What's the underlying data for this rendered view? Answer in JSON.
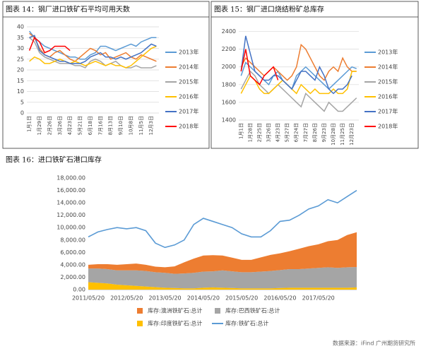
{
  "chart_data": [
    {
      "type": "line",
      "title": "图表 14：钢厂进口铁矿石平均可用天数",
      "categories": [
        "1月1日",
        null,
        "1月29日",
        null,
        "2月26日",
        null,
        "3月26日",
        null,
        "4月23日",
        null,
        "5月21日",
        null,
        "6月18日",
        null,
        "7月16日",
        null,
        "8月13日",
        null,
        "9月10日",
        null,
        "10月8日",
        null,
        "11月5日",
        null,
        "12月3日",
        null
      ],
      "ylim": [
        0,
        40
      ],
      "yticks": [
        0,
        5,
        10,
        15,
        20,
        25,
        30,
        35,
        40
      ],
      "grid": true,
      "legend": "right",
      "series": [
        {
          "name": "2013年",
          "color": "#5b9bd5",
          "values": [
            38,
            35,
            33,
            31,
            30,
            29,
            28,
            27,
            26,
            26,
            25,
            25,
            27,
            28,
            31,
            31,
            30,
            29,
            30,
            31,
            32,
            31,
            33,
            34,
            35,
            35
          ]
        },
        {
          "name": "2014年",
          "color": "#ed7d31",
          "values": [
            37,
            35,
            30,
            27,
            26,
            28,
            29,
            27,
            25,
            24,
            26,
            28,
            30,
            29,
            27,
            28,
            25,
            26,
            27,
            28,
            26,
            25,
            27,
            26,
            25,
            24
          ]
        },
        {
          "name": "2015年",
          "color": "#a5a5a5",
          "values": [
            35,
            33,
            28,
            26,
            25,
            24,
            23,
            23,
            23,
            22,
            22,
            21,
            24,
            25,
            24,
            22,
            23,
            24,
            22,
            21,
            21,
            22,
            21,
            21,
            21,
            22
          ]
        },
        {
          "name": "2016年",
          "color": "#ffc000",
          "values": [
            24,
            26,
            25,
            23,
            23,
            24,
            25,
            24,
            23,
            24,
            23,
            22,
            23,
            24,
            23,
            22,
            23,
            22,
            22,
            21,
            22,
            24,
            26,
            28,
            30,
            31
          ]
        },
        {
          "name": "2017年",
          "color": "#4472c4",
          "values": [
            35,
            36,
            29,
            27,
            26,
            25,
            24,
            24,
            23,
            23,
            23,
            24,
            26,
            27,
            28,
            26,
            26,
            25,
            26,
            25,
            26,
            27,
            28,
            30,
            32,
            31
          ]
        },
        {
          "name": "2018年",
          "color": "#ff0000",
          "values": [
            29,
            35,
            33,
            28,
            29,
            31,
            31,
            31,
            29,
            null,
            null,
            null,
            null,
            null,
            null,
            null,
            null,
            null,
            null,
            null,
            null,
            null,
            null,
            null,
            null,
            null
          ]
        }
      ]
    },
    {
      "type": "line",
      "title": "图表 15：钢厂进口烧结粉矿总库存",
      "categories": [
        "1月1日",
        null,
        "1月28日",
        null,
        "2月25日",
        null,
        "3月26日",
        null,
        "4月23日",
        null,
        "5月27日",
        null,
        "6月24日",
        null,
        "7月27日",
        null,
        "8月26日",
        null,
        "9月23日",
        null,
        "10月28日",
        null,
        "11月25日",
        null,
        "12月23日",
        null
      ],
      "ylim": [
        1400,
        2500
      ],
      "yticks": [
        1400,
        1600,
        1800,
        2000,
        2200,
        2400
      ],
      "grid": true,
      "legend": "right",
      "series": [
        {
          "name": "2013年",
          "color": "#5b9bd5",
          "values": [
            1900,
            2050,
            2000,
            1950,
            1900,
            1850,
            1800,
            1900,
            1950,
            1850,
            1800,
            1750,
            1900,
            1950,
            2000,
            1950,
            1900,
            1850,
            1800,
            1750,
            1800,
            1850,
            1900,
            1950,
            2000,
            1980
          ]
        },
        {
          "name": "2014年",
          "color": "#ed7d31",
          "values": [
            2000,
            2100,
            2050,
            2000,
            1950,
            1900,
            1950,
            2000,
            1950,
            1900,
            1850,
            1900,
            2000,
            2250,
            2200,
            2100,
            2000,
            1900,
            1850,
            1950,
            2000,
            1950,
            2100,
            2000,
            1950,
            1950
          ]
        },
        {
          "name": "2015年",
          "color": "#a5a5a5",
          "values": [
            1750,
            1850,
            1950,
            1900,
            1800,
            1750,
            1700,
            1750,
            1800,
            1750,
            1700,
            1650,
            1600,
            1550,
            1700,
            1650,
            1600,
            1550,
            1500,
            1600,
            1550,
            1500,
            1500,
            1550,
            1600,
            1650
          ]
        },
        {
          "name": "2016年",
          "color": "#ffc000",
          "values": [
            1700,
            1800,
            1900,
            1850,
            1750,
            1700,
            1700,
            1750,
            1800,
            1850,
            1800,
            1750,
            1700,
            1800,
            1750,
            1700,
            1750,
            1700,
            1700,
            1700,
            1750,
            1700,
            1700,
            1750,
            1950,
            1950
          ]
        },
        {
          "name": "2017年",
          "color": "#4472c4",
          "values": [
            1950,
            2350,
            2150,
            1950,
            1900,
            1850,
            1850,
            1900,
            1900,
            1850,
            1800,
            1750,
            1850,
            1950,
            1950,
            1900,
            1850,
            2000,
            1900,
            1750,
            1700,
            1750,
            1750,
            1800,
            1900,
            null
          ]
        },
        {
          "name": "2018年",
          "color": "#ff0000",
          "values": [
            1950,
            2200,
            1900,
            1850,
            1800,
            1900,
            1950,
            2000,
            1850,
            null,
            null,
            null,
            null,
            null,
            null,
            null,
            null,
            null,
            null,
            null,
            null,
            null,
            null,
            null,
            null,
            null
          ]
        }
      ]
    },
    {
      "type": "area",
      "title": "图表 16：进口铁矿石港口库存",
      "categories": [
        "2011/05/20",
        null,
        null,
        null,
        "2012/05/20",
        null,
        null,
        null,
        "2013/05/20",
        null,
        null,
        null,
        "2014/05/20",
        null,
        null,
        null,
        "2015/05/20",
        null,
        null,
        null,
        "2016/05/20",
        null,
        null,
        null,
        "2017/05/20",
        null,
        null,
        null,
        null
      ],
      "ylim": [
        0,
        18000
      ],
      "yticks": [
        {
          "value": 0,
          "label": "0.00"
        },
        {
          "value": 2000,
          "label": "2,000.00"
        },
        {
          "value": 4000,
          "label": "4,000.00"
        },
        {
          "value": 6000,
          "label": "6,000.00"
        },
        {
          "value": 8000,
          "label": "8,000.00"
        },
        {
          "value": 10000,
          "label": "10,000.00"
        },
        {
          "value": 12000,
          "label": "12,000.00"
        },
        {
          "value": 14000,
          "label": "14,000.00"
        },
        {
          "value": 16000,
          "label": "16,000.00"
        },
        {
          "value": 18000,
          "label": "18,000.00"
        }
      ],
      "grid": false,
      "legend": "bottom",
      "stacked": true,
      "series": [
        {
          "name": "库存:澳洲铁矿石:总计",
          "color": "#ed7d31",
          "type": "area",
          "values": [
            600,
            700,
            800,
            900,
            1000,
            1100,
            1000,
            900,
            900,
            1200,
            1800,
            2300,
            2600,
            2600,
            2400,
            2200,
            2000,
            2000,
            2300,
            2600,
            2700,
            2900,
            3300,
            3600,
            3800,
            4200,
            4500,
            5200,
            5600
          ]
        },
        {
          "name": "库存:巴西铁矿石:总计",
          "color": "#a5a5a5",
          "type": "area",
          "values": [
            2200,
            2300,
            2300,
            2300,
            2400,
            2500,
            2500,
            2400,
            2400,
            2300,
            2400,
            2500,
            2600,
            2600,
            2800,
            2700,
            2600,
            2600,
            2700,
            2800,
            2900,
            3000,
            3000,
            3100,
            3200,
            3300,
            3200,
            3300,
            3300
          ]
        },
        {
          "name": "库存:印度铁矿石:总计",
          "color": "#ffc000",
          "type": "area",
          "values": [
            1200,
            1100,
            1000,
            800,
            700,
            600,
            500,
            400,
            300,
            250,
            200,
            200,
            300,
            350,
            300,
            250,
            200,
            200,
            200,
            200,
            250,
            300,
            300,
            300,
            300,
            300,
            300,
            300,
            350
          ]
        },
        {
          "name": "库存:铁矿石:总计",
          "color": "#5b9bd5",
          "type": "line",
          "values": [
            8500,
            9300,
            9700,
            10000,
            9800,
            10000,
            9500,
            7500,
            6800,
            7200,
            8000,
            10500,
            11500,
            11000,
            10500,
            10000,
            9000,
            8500,
            8500,
            9500,
            11000,
            11200,
            12000,
            13000,
            13500,
            14500,
            14000,
            15000,
            16000
          ]
        }
      ]
    }
  ],
  "source": "数据来源：iFind 广州期货研究所"
}
